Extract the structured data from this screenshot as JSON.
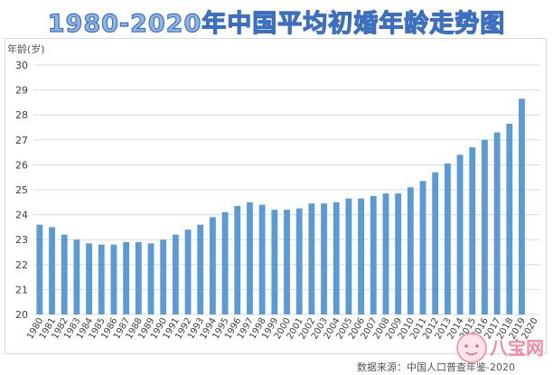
{
  "title": "1980-2020年中国平均初婚年龄走势图",
  "source": "数据来源：中国人口普查年鉴-2020",
  "colors": {
    "bar": "#5b9bd5",
    "title_fill": "#8fb4e8",
    "title_stroke": "#3c6fc0",
    "watermark": "#f28aa0"
  },
  "watermark": {
    "text": "八宝网",
    "icon": "baby-logo-icon"
  },
  "chart_data": {
    "type": "bar",
    "title": "1980-2020年中国平均初婚年龄走势图",
    "ylabel": "年龄(岁)",
    "xlabel": "",
    "ylim": [
      20,
      30
    ],
    "yticks": [
      20,
      21,
      22,
      23,
      24,
      25,
      26,
      27,
      28,
      29,
      30
    ],
    "grid": true,
    "categories": [
      "1980",
      "1981",
      "1982",
      "1983",
      "1984",
      "1985",
      "1986",
      "1987",
      "1988",
      "1989",
      "1990",
      "1991",
      "1992",
      "1993",
      "1994",
      "1995",
      "1996",
      "1997",
      "1998",
      "1999",
      "2000",
      "2001",
      "2002",
      "2003",
      "2004",
      "2005",
      "2006",
      "2007",
      "2008",
      "2009",
      "2010",
      "2011",
      "2012",
      "2013",
      "2014",
      "2015",
      "2016",
      "2017",
      "2018",
      "2019",
      "2020"
    ],
    "values": [
      23.6,
      23.5,
      23.2,
      23.0,
      22.85,
      22.8,
      22.8,
      22.9,
      22.9,
      22.85,
      23.0,
      23.2,
      23.4,
      23.6,
      23.9,
      24.1,
      24.35,
      24.5,
      24.4,
      24.2,
      24.2,
      24.25,
      24.45,
      24.45,
      24.5,
      24.65,
      24.65,
      24.75,
      24.85,
      24.85,
      25.1,
      25.35,
      25.7,
      26.05,
      26.4,
      26.7,
      27.0,
      27.3,
      27.65,
      28.65,
      null
    ]
  }
}
